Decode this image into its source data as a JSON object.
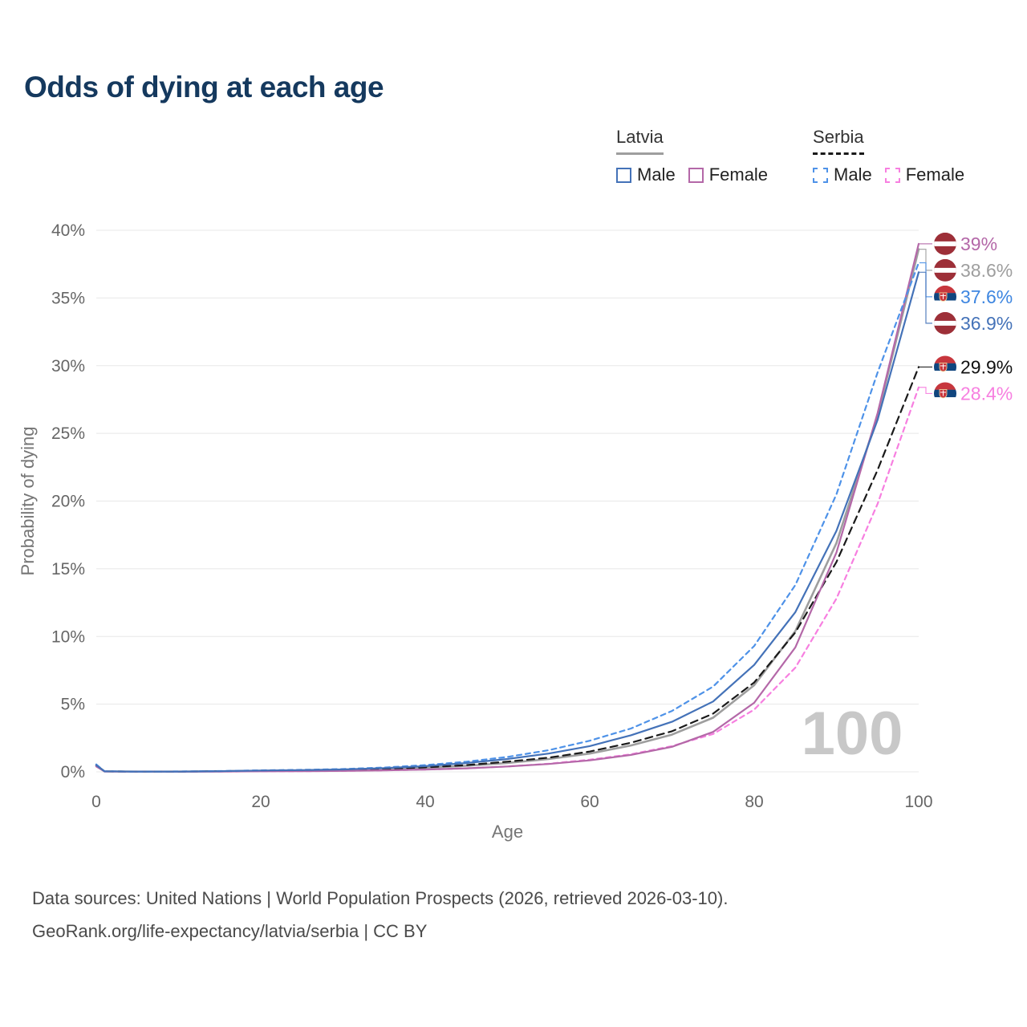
{
  "title": "Odds of dying at each age",
  "legend": {
    "groups": [
      {
        "label": "Latvia",
        "line_color": "#9e9e9e",
        "dashed": false,
        "items": [
          {
            "label": "Male",
            "color": "#4472b8",
            "dashed": false
          },
          {
            "label": "Female",
            "color": "#b468a8",
            "dashed": false
          }
        ]
      },
      {
        "label": "Serbia",
        "line_color": "#1a1a1a",
        "dashed": true,
        "items": [
          {
            "label": "Male",
            "color": "#4e92e8",
            "dashed": true
          },
          {
            "label": "Female",
            "color": "#f77fe0",
            "dashed": true
          }
        ]
      }
    ]
  },
  "chart_data": {
    "type": "line",
    "title": "Odds of dying at each age",
    "xlabel": "Age",
    "ylabel": "Probability of dying",
    "xlim": [
      0,
      100
    ],
    "ylim": [
      0,
      40
    ],
    "x_ticks": [
      0,
      20,
      40,
      60,
      80,
      100
    ],
    "y_ticks": [
      0,
      5,
      10,
      15,
      20,
      25,
      30,
      35,
      40
    ],
    "y_tick_suffix": "%",
    "grid": true,
    "legend_position": "top-right",
    "watermark": "100",
    "x": [
      0,
      1,
      5,
      10,
      15,
      20,
      25,
      30,
      35,
      40,
      45,
      50,
      55,
      60,
      65,
      70,
      75,
      80,
      85,
      90,
      95,
      100
    ],
    "series": [
      {
        "name": "Latvia Female",
        "country": "latvia",
        "sex": "female",
        "color": "#b468a8",
        "dashed": false,
        "end_label": "39%",
        "label_color": "#b468a8",
        "values": [
          0.4,
          0.03,
          0.015,
          0.015,
          0.025,
          0.04,
          0.05,
          0.07,
          0.11,
          0.17,
          0.26,
          0.4,
          0.58,
          0.85,
          1.25,
          1.85,
          2.95,
          5.1,
          9.2,
          16.2,
          26.5,
          39
        ]
      },
      {
        "name": "Latvia",
        "country": "latvia",
        "sex": "total",
        "color": "#9e9e9e",
        "dashed": false,
        "end_label": "38.6%",
        "label_color": "#9e9e9e",
        "values": [
          0.45,
          0.035,
          0.018,
          0.018,
          0.04,
          0.07,
          0.09,
          0.12,
          0.19,
          0.29,
          0.45,
          0.66,
          0.95,
          1.35,
          1.95,
          2.75,
          4.0,
          6.4,
          10.4,
          16.9,
          26.3,
          38.6
        ]
      },
      {
        "name": "Serbia Male",
        "country": "serbia",
        "sex": "male",
        "color": "#4e92e8",
        "dashed": true,
        "end_label": "37.6%",
        "label_color": "#3e86e0",
        "values": [
          0.55,
          0.04,
          0.02,
          0.03,
          0.06,
          0.11,
          0.15,
          0.21,
          0.32,
          0.5,
          0.75,
          1.1,
          1.6,
          2.3,
          3.2,
          4.5,
          6.3,
          9.3,
          13.8,
          20.5,
          29.5,
          37.6
        ]
      },
      {
        "name": "Latvia Male",
        "country": "latvia",
        "sex": "male",
        "color": "#4472b8",
        "dashed": false,
        "end_label": "36.9%",
        "label_color": "#4472b8",
        "values": [
          0.5,
          0.04,
          0.02,
          0.02,
          0.05,
          0.1,
          0.13,
          0.18,
          0.28,
          0.42,
          0.65,
          0.95,
          1.35,
          1.9,
          2.7,
          3.7,
          5.2,
          7.9,
          11.8,
          17.8,
          26,
          36.9
        ]
      },
      {
        "name": "Serbia",
        "country": "serbia",
        "sex": "total",
        "color": "#1a1a1a",
        "dashed": true,
        "end_label": "29.9%",
        "label_color": "#111111",
        "values": [
          0.5,
          0.035,
          0.018,
          0.02,
          0.045,
          0.075,
          0.1,
          0.14,
          0.21,
          0.33,
          0.5,
          0.75,
          1.05,
          1.5,
          2.15,
          3.0,
          4.3,
          6.6,
          10.3,
          15.5,
          22.3,
          29.9
        ]
      },
      {
        "name": "Serbia Female",
        "country": "serbia",
        "sex": "female",
        "color": "#f77fe0",
        "dashed": true,
        "end_label": "28.4%",
        "label_color": "#f77fe0",
        "values": [
          0.45,
          0.03,
          0.015,
          0.015,
          0.025,
          0.04,
          0.05,
          0.07,
          0.11,
          0.17,
          0.26,
          0.4,
          0.6,
          0.9,
          1.3,
          1.9,
          2.8,
          4.6,
          7.7,
          12.8,
          19.8,
          28.4
        ]
      }
    ],
    "flag_colors": {
      "latvia": {
        "red": "#9d2f38",
        "white": "#ffffff"
      },
      "serbia": {
        "red": "#c7363d",
        "blue": "#10457e",
        "white": "#ffffff"
      }
    }
  },
  "footer": {
    "line1": "Data sources: United Nations | World Population Prospects (2026, retrieved 2026-03-10).",
    "line2": "GeoRank.org/life-expectancy/latvia/serbia | CC BY"
  }
}
